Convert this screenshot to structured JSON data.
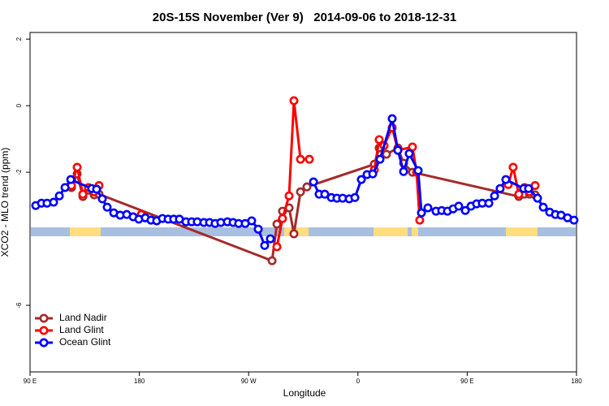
{
  "chart_data": {
    "type": "line",
    "title": "20S-15S November (Ver 9)   2014-09-06 to 2018-12-31",
    "x_label": "Longitude",
    "y_label": "XCO2 - MLO trend (ppm)",
    "xlim": [
      90,
      540
    ],
    "ylim": [
      -8,
      2.2
    ],
    "xticks": [
      {
        "value": 90,
        "label": "90 E"
      },
      180,
      {
        "value": 270,
        "label": "90 W"
      },
      {
        "value": 360,
        "label": "0"
      },
      {
        "value": 450,
        "label": "90 E"
      },
      {
        "value": 540,
        "label": "180"
      }
    ],
    "yticks": [
      2,
      0,
      -2,
      -6
    ],
    "legend": "bottomleft",
    "series": [
      {
        "name": "Land Nadir",
        "color": "#a52a2a",
        "x": [
          124.1,
          128.8,
          133.5,
          138.1,
          142.8,
          146.8,
          289.3,
          293.3,
          297.9,
          303.3,
          307.3,
          312.7,
          318.0,
          373.5,
          377.5,
          383.5,
          392.9,
          397.6,
          404.9,
          492.5,
          497.2,
          501.2,
          505.9
        ],
        "values": [
          -2.46,
          -2.05,
          -2.73,
          -2.54,
          -2.68,
          -2.66,
          -4.66,
          -3.56,
          -3.17,
          -3.07,
          -3.85,
          -2.59,
          -2.44,
          -1.76,
          -1.27,
          -1.46,
          -1.27,
          -1.73,
          -2.0,
          -2.73,
          -2.66,
          -2.66,
          -2.68
        ]
      },
      {
        "name": "Land Glint",
        "color": "#ff0000",
        "x": [
          124.1,
          128.8,
          133.5,
          138.1,
          142.8,
          146.8,
          160.0,
          181.6,
          250.0,
          293.3,
          297.9,
          303.3,
          307.3,
          312.7,
          320.0,
          350.0,
          373.5,
          377.5,
          381.5,
          388.2,
          392.9,
          404.9,
          408.3,
          410.9,
          450.0,
          483.8,
          487.8,
          492.5,
          497.2,
          501.2,
          505.9
        ],
        "values": [
          -2.4,
          -1.85,
          -2.66,
          -2.46,
          -2.59,
          -2.4,
          null,
          -3.27,
          null,
          -4.24,
          -3.39,
          -2.71,
          0.15,
          -1.61,
          -1.61,
          null,
          -1.93,
          -1.02,
          -1.2,
          -0.66,
          -1.34,
          -1.24,
          -2.0,
          -3.44,
          null,
          -2.37,
          -1.85,
          -2.66,
          -2.46,
          -2.59,
          -2.4
        ]
      },
      {
        "name": "Ocean Glint",
        "color": "#0000ff",
        "x": [
          94.7,
          99.4,
          104.0,
          109.4,
          114.1,
          118.8,
          123.5,
          140.8,
          144.8,
          149.5,
          153.5,
          158.9,
          164.2,
          169.6,
          174.9,
          179.6,
          184.9,
          189.6,
          194.3,
          199.0,
          203.7,
          208.3,
          213.0,
          218.4,
          223.1,
          227.7,
          233.1,
          237.8,
          242.4,
          247.1,
          252.5,
          257.2,
          261.8,
          267.2,
          272.5,
          277.9,
          283.2,
          287.9,
          305.0,
          323.4,
          328.0,
          332.7,
          338.1,
          342.7,
          347.4,
          352.8,
          357.5,
          362.8,
          367.5,
          372.2,
          378.2,
          388.2,
          392.9,
          397.6,
          402.2,
          409.6,
          412.3,
          417.6,
          424.3,
          429.0,
          433.7,
          438.4,
          443.0,
          448.4,
          453.1,
          457.7,
          462.4,
          467.8,
          472.5,
          477.1,
          481.8,
          496.5,
          500.5,
          507.9,
          512.6,
          517.9,
          522.6,
          527.3,
          532.6,
          537.9
        ],
        "values": [
          -3.0,
          -2.93,
          -2.93,
          -2.9,
          -2.71,
          -2.46,
          -2.22,
          -2.49,
          -2.51,
          -2.8,
          -3.05,
          -3.22,
          -3.29,
          -3.27,
          -3.34,
          -3.41,
          -3.37,
          -3.44,
          -3.46,
          -3.39,
          -3.41,
          -3.41,
          -3.41,
          -3.49,
          -3.49,
          -3.49,
          -3.51,
          -3.51,
          -3.54,
          -3.51,
          -3.49,
          -3.51,
          -3.54,
          -3.54,
          -3.46,
          -3.71,
          -4.2,
          -4.0,
          null,
          -2.29,
          -2.66,
          -2.66,
          -2.76,
          -2.78,
          -2.78,
          -2.8,
          -2.76,
          -2.22,
          -2.07,
          -2.05,
          -1.61,
          -0.39,
          -1.34,
          -1.98,
          -1.44,
          -1.95,
          -3.22,
          -3.07,
          -3.17,
          -3.15,
          -3.17,
          -3.1,
          -3.02,
          -3.15,
          -3.02,
          -2.95,
          -2.93,
          -2.93,
          -2.71,
          -2.49,
          -2.22,
          -2.49,
          -2.49,
          -2.78,
          -3.05,
          -3.2,
          -3.27,
          -3.29,
          -3.37,
          -3.44
        ]
      }
    ]
  }
}
